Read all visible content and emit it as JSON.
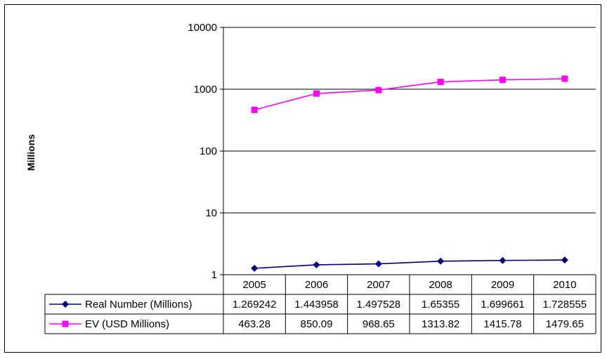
{
  "chart_data": {
    "type": "line",
    "title": "",
    "ylabel": "Millions",
    "xlabel": "",
    "y_scale": "log",
    "ylim": [
      1,
      10000
    ],
    "y_ticks": [
      "10000",
      "1000",
      "100",
      "10",
      "1"
    ],
    "y_tick_values": [
      10000,
      1000,
      100,
      10,
      1
    ],
    "categories": [
      "2005",
      "2006",
      "2007",
      "2008",
      "2009",
      "2010"
    ],
    "grid": "horizontal",
    "legend": "data-table",
    "series": [
      {
        "name": "Real Number (Millions)",
        "color": "#000080",
        "marker": "diamond",
        "values": [
          1.269242,
          1.443958,
          1.497528,
          1.65355,
          1.699661,
          1.728555
        ],
        "labels": [
          "1.269242",
          "1.443958",
          "1.497528",
          "1.65355",
          "1.699661",
          "1.728555"
        ]
      },
      {
        "name": "EV (USD Millions)",
        "color": "#ff00ff",
        "marker": "square",
        "values": [
          463.28,
          850.09,
          968.65,
          1313.82,
          1415.78,
          1479.65
        ],
        "labels": [
          "463.28",
          "850.09",
          "968.65",
          "1313.82",
          "1415.78",
          "1479.65"
        ]
      }
    ]
  }
}
